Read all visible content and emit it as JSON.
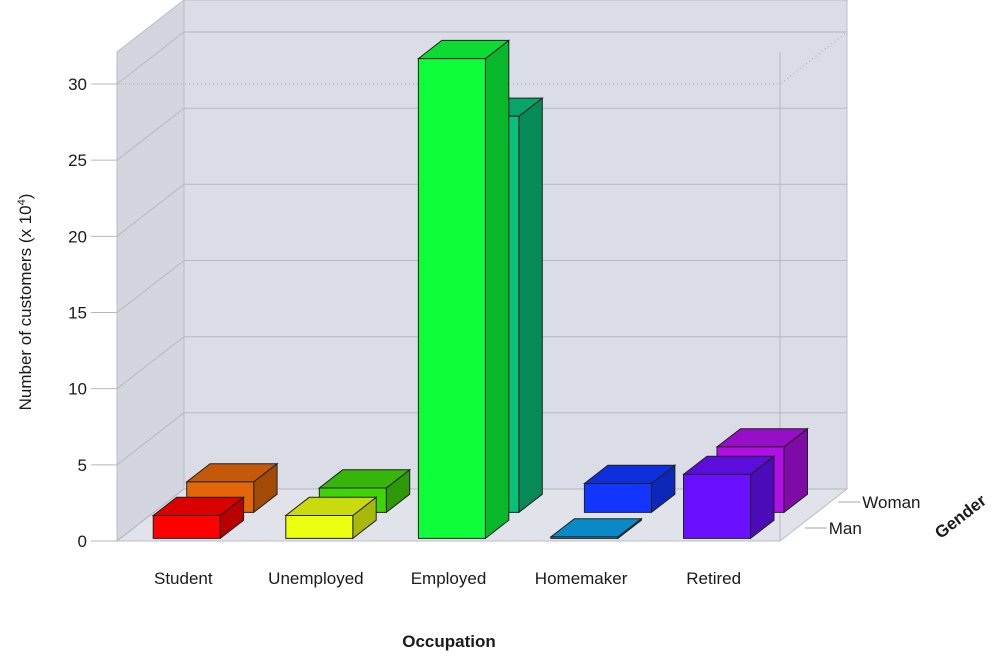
{
  "chart_data": {
    "type": "bar",
    "categories": [
      "Student",
      "Unemployed",
      "Employed",
      "Homemaker",
      "Retired"
    ],
    "series": [
      {
        "name": "Man",
        "values": [
          1.5,
          1.5,
          31.5,
          0.1,
          4.2
        ],
        "colors": [
          "#ff0000",
          "#eaff0f",
          "#0dff3a",
          "#0aa0e6",
          "#6a0fff"
        ]
      },
      {
        "name": "Woman",
        "values": [
          2.0,
          1.6,
          26.0,
          1.9,
          4.3
        ],
        "colors": [
          "#e3670a",
          "#3fd40a",
          "#08c07a",
          "#1236ff",
          "#b10fe6"
        ]
      }
    ],
    "ylim": [
      0,
      30
    ],
    "yticks": [
      0,
      5,
      10,
      15,
      20,
      25,
      30
    ],
    "xlabel": "Occupation",
    "ylabel_main": "Number of customers (x 10",
    "ylabel_sup": "4",
    "ylabel_end": ")",
    "zlabel": "Gender",
    "grid": true
  }
}
